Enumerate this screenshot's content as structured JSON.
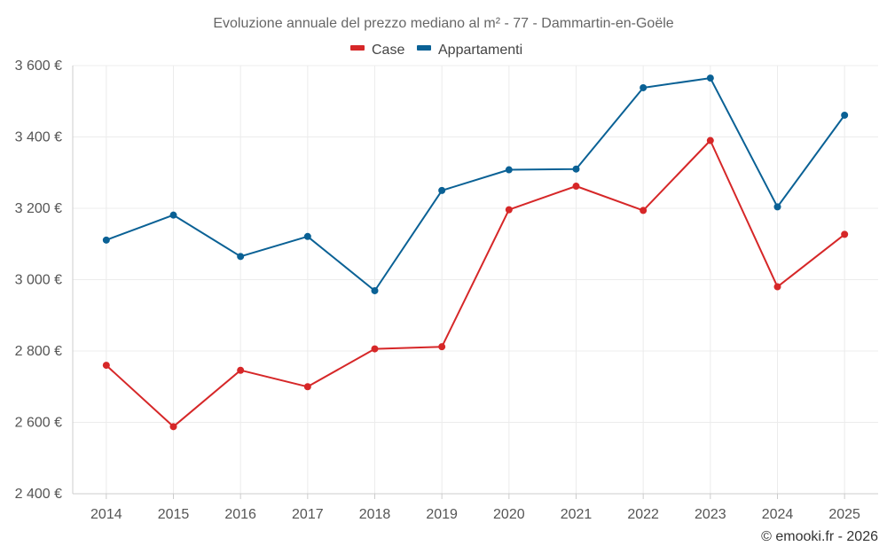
{
  "chart_data": {
    "type": "line",
    "title": "Evoluzione annuale del prezzo mediano al m² - 77 - Dammartin-en-Goële",
    "xlabel": "",
    "ylabel": "",
    "categories": [
      "2014",
      "2015",
      "2016",
      "2017",
      "2018",
      "2019",
      "2020",
      "2021",
      "2022",
      "2023",
      "2024",
      "2025"
    ],
    "ylim": [
      2400,
      3600
    ],
    "yticks": [
      2400,
      2600,
      2800,
      3000,
      3200,
      3400,
      3600
    ],
    "ytick_labels": [
      "2 400 €",
      "2 600 €",
      "2 800 €",
      "3 000 €",
      "3 200 €",
      "3 400 €",
      "3 600 €"
    ],
    "grid": true,
    "legend_position": "top-center",
    "series": [
      {
        "name": "Case",
        "color": "#d62728",
        "values": [
          2760,
          2588,
          2746,
          2700,
          2806,
          2812,
          3196,
          3262,
          3194,
          3390,
          2980,
          3127
        ]
      },
      {
        "name": "Appartamenti",
        "color": "#0a6195",
        "values": [
          3111,
          3181,
          3065,
          3121,
          2969,
          3250,
          3308,
          3310,
          3538,
          3565,
          3204,
          3461
        ]
      }
    ]
  },
  "credit": "© emooki.fr - 2026"
}
